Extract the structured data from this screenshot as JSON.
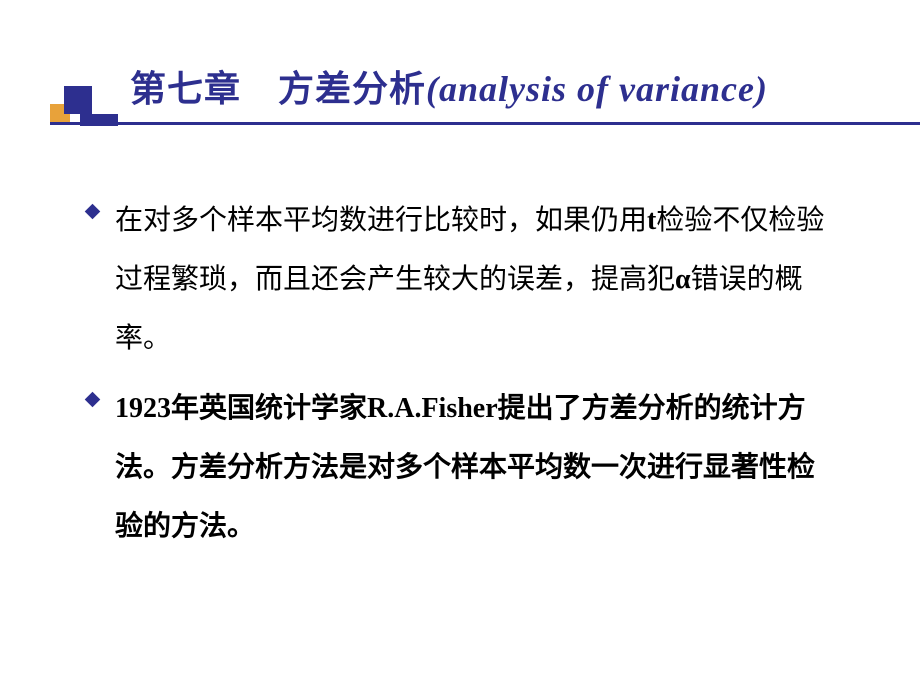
{
  "slide": {
    "title_cn": "第七章　方差分析",
    "title_en": "(analysis of variance)",
    "bullets": [
      {
        "pre": "在对多个样本平均数进行比较时，如果仍用",
        "latin1": "t",
        "mid1": "检验不仅检验过程繁琐，而且还会产生较大的误差，提高犯",
        "greek": "α",
        "post": "错误的概率。"
      },
      {
        "bold_pre": "1923",
        "bold_mid": "年英国统计学家",
        "bold_latin": "R.A.Fisher",
        "bold_post": "提出了方差分析的统计方法。方差分析方法是对多个样本平均数一次进行显著性检验的方法。"
      }
    ]
  },
  "colors": {
    "title": "#2d2f8f",
    "accent_orange": "#e8a23a",
    "accent_navy": "#2d2f8f",
    "text": "#000000",
    "background": "#ffffff"
  },
  "fonts": {
    "title_size": 36,
    "body_size": 28,
    "line_height": 2.1
  }
}
